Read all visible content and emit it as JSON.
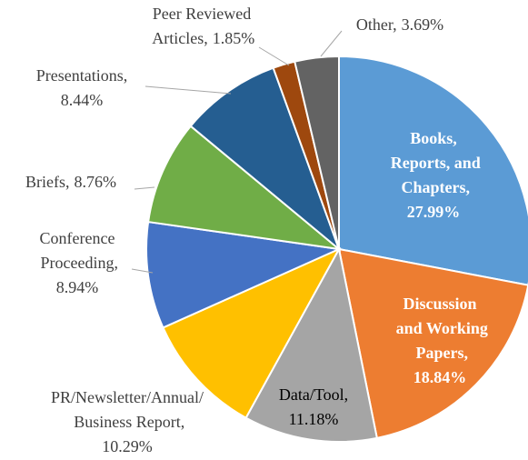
{
  "chart_data": {
    "type": "pie",
    "categories": [
      "Books, Reports, and Chapters,",
      "Discussion and Working Papers,",
      "Data/Tool,",
      "PR/Newsletter/Annual/ Business Report,",
      "Conference Proceeding,",
      "Briefs,",
      "Presentations,",
      "Peer Reviewed Articles,",
      "Other,"
    ],
    "values": [
      27.99,
      18.84,
      11.18,
      10.29,
      8.94,
      8.76,
      8.44,
      1.85,
      3.69
    ],
    "value_labels": [
      "27.99%",
      "18.84%",
      "11.18%",
      "10.29%",
      "8.94%",
      "8.76%",
      "8.44%",
      "1.85%",
      "3.69%"
    ],
    "colors": [
      "#5b9bd5",
      "#ed7d31",
      "#a5a5a5",
      "#ffc000",
      "#4472c4",
      "#70ad47",
      "#255e91",
      "#9e480e",
      "#636363"
    ]
  }
}
